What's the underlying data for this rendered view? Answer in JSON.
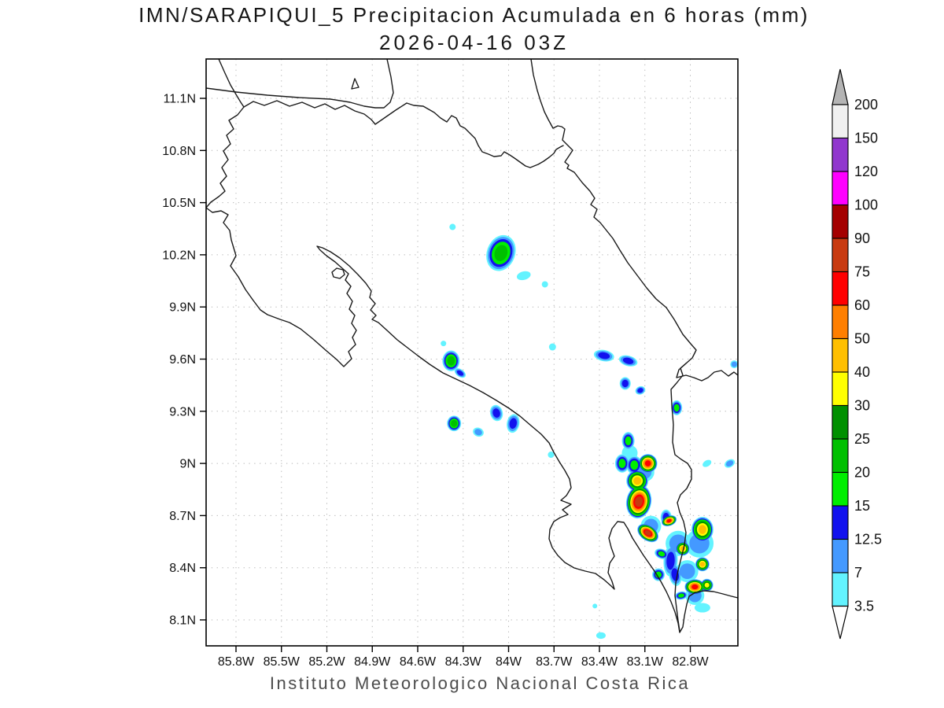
{
  "header": {
    "title": "IMN/SARAPIQUI_5 Precipitacion Acumulada en 6 horas (mm)",
    "subtitle": "2026-04-16 03Z"
  },
  "footer": {
    "caption": "Instituto Meteorologico Nacional Costa Rica"
  },
  "chart_data": {
    "type": "heatmap",
    "subtype": "filled-contour-precipitation-map",
    "title": "IMN/SARAPIQUI_5 Precipitacion Acumulada en 6 horas (mm)",
    "subtitle": "2026-04-16 03Z",
    "units": "mm",
    "region": "Costa Rica",
    "grid": "dotted",
    "lat_ticks": [
      "11.1N",
      "10.8N",
      "10.5N",
      "10.2N",
      "9.9N",
      "9.6N",
      "9.3N",
      "9N",
      "8.7N",
      "8.4N",
      "8.1N"
    ],
    "lon_ticks": [
      "85.8W",
      "85.5W",
      "85.2W",
      "84.9W",
      "84.6W",
      "84.3W",
      "84W",
      "83.7W",
      "83.4W",
      "83.1W",
      "82.8W"
    ],
    "xlim_lon_west": [
      86.0,
      82.49
    ],
    "ylim_lat_north": [
      7.95,
      11.33
    ],
    "colorbar": {
      "position": "right",
      "levels_top_to_bottom": [
        "200",
        "150",
        "120",
        "100",
        "90",
        "75",
        "60",
        "50",
        "40",
        "30",
        "25",
        "20",
        "15",
        "12.5",
        "7",
        "3.5"
      ],
      "segment_colors_top_to_bottom": [
        "#f0f0f0",
        "#9137ce",
        "#ff00ff",
        "#a40000",
        "#c83a10",
        "#ff0000",
        "#ff7f00",
        "#ffbf00",
        "#ffff00",
        "#009000",
        "#00c000",
        "#00ee00",
        "#1212ee",
        "#4499ff",
        "#63f3ff"
      ],
      "over_arrow_color": "#b4b4b4",
      "under_arrow_color": "#ffffff"
    },
    "precip_features": [
      {
        "lon": 84.37,
        "lat": 10.36,
        "mm": 5,
        "size": 4
      },
      {
        "lon": 84.05,
        "lat": 10.21,
        "mm": 21,
        "size": 18,
        "aspect": 1.3,
        "rot": 20
      },
      {
        "lon": 83.9,
        "lat": 10.08,
        "mm": 5,
        "size": 9,
        "aspect": 0.6,
        "rot": -15
      },
      {
        "lon": 83.76,
        "lat": 10.03,
        "mm": 5,
        "size": 4
      },
      {
        "lon": 83.71,
        "lat": 9.67,
        "mm": 5,
        "size": 4.5
      },
      {
        "lon": 84.38,
        "lat": 9.59,
        "mm": 21,
        "size": 11,
        "aspect": 1.2
      },
      {
        "lon": 84.43,
        "lat": 9.69,
        "mm": 5,
        "size": 3.5
      },
      {
        "lon": 84.32,
        "lat": 9.52,
        "mm": 13,
        "size": 8,
        "aspect": 0.6,
        "rot": 35
      },
      {
        "lon": 83.37,
        "lat": 9.62,
        "mm": 13,
        "size": 13,
        "aspect": 0.55,
        "rot": 10
      },
      {
        "lon": 83.21,
        "lat": 9.59,
        "mm": 13,
        "size": 12,
        "aspect": 0.55,
        "rot": 15
      },
      {
        "lon": 83.23,
        "lat": 9.46,
        "mm": 13,
        "size": 7,
        "aspect": 1.15
      },
      {
        "lon": 83.13,
        "lat": 9.42,
        "mm": 13,
        "size": 6.5,
        "aspect": 0.8,
        "rot": -20
      },
      {
        "lon": 82.89,
        "lat": 9.32,
        "mm": 17,
        "size": 7,
        "aspect": 1.35
      },
      {
        "lon": 84.36,
        "lat": 9.23,
        "mm": 21,
        "size": 9,
        "aspect": 1.1
      },
      {
        "lon": 84.2,
        "lat": 9.18,
        "mm": 8,
        "size": 7,
        "aspect": 0.8,
        "rot": 20
      },
      {
        "lon": 84.08,
        "lat": 9.29,
        "mm": 13,
        "size": 8,
        "aspect": 1.3,
        "rot": -15
      },
      {
        "lon": 83.97,
        "lat": 9.23,
        "mm": 13,
        "size": 8,
        "aspect": 1.5,
        "rot": 10
      },
      {
        "lon": 83.72,
        "lat": 9.05,
        "mm": 5,
        "size": 4
      },
      {
        "lon": 82.69,
        "lat": 9.0,
        "mm": 5,
        "size": 6,
        "aspect": 0.65,
        "rot": -30
      },
      {
        "lon": 82.54,
        "lat": 9.0,
        "mm": 8,
        "size": 7,
        "aspect": 0.7,
        "rot": -30
      },
      {
        "lon": 82.51,
        "lat": 9.57,
        "mm": 8,
        "size": 5
      },
      {
        "lon": 83.39,
        "lat": 8.01,
        "mm": 5,
        "size": 6,
        "aspect": 0.7
      },
      {
        "lon": 83.43,
        "lat": 8.18,
        "mm": 5,
        "size": 3
      },
      {
        "lon": 83.21,
        "lat": 9.13,
        "mm": 17,
        "size": 8,
        "aspect": 1.4
      },
      {
        "lon": 83.25,
        "lat": 9.0,
        "mm": 17,
        "size": 9,
        "aspect": 1.3
      },
      {
        "lon": 83.17,
        "lat": 8.99,
        "mm": 17,
        "size": 10,
        "aspect": 1.2
      },
      {
        "lon": 83.08,
        "lat": 9.0,
        "mm": 62,
        "size": 12
      },
      {
        "lon": 83.15,
        "lat": 8.9,
        "mm": 45,
        "size": 14
      },
      {
        "lon": 83.14,
        "lat": 8.78,
        "mm": 80,
        "size": 16,
        "aspect": 1.35,
        "rot": 10
      },
      {
        "lon": 82.94,
        "lat": 8.67,
        "mm": 62,
        "size": 10,
        "aspect": 0.65,
        "rot": -20
      },
      {
        "lon": 83.08,
        "lat": 8.6,
        "mm": 80,
        "size": 15,
        "aspect": 0.65,
        "rot": 35
      },
      {
        "lon": 82.85,
        "lat": 8.51,
        "mm": 45,
        "size": 9
      },
      {
        "lon": 82.72,
        "lat": 8.62,
        "mm": 45,
        "size": 14,
        "aspect": 1.15
      },
      {
        "lon": 82.72,
        "lat": 8.42,
        "mm": 45,
        "size": 9
      },
      {
        "lon": 82.99,
        "lat": 8.48,
        "mm": 17,
        "size": 9,
        "aspect": 0.7,
        "rot": 20
      },
      {
        "lon": 83.01,
        "lat": 8.36,
        "mm": 17,
        "size": 8
      },
      {
        "lon": 82.77,
        "lat": 8.29,
        "mm": 62,
        "size": 13,
        "aspect": 0.75
      },
      {
        "lon": 82.69,
        "lat": 8.3,
        "mm": 33,
        "size": 8
      },
      {
        "lon": 82.86,
        "lat": 8.24,
        "mm": 17,
        "size": 8,
        "aspect": 0.65,
        "rot": -10
      },
      {
        "lon": 82.93,
        "lat": 8.44,
        "mm": 13,
        "size": 9,
        "aspect": 2.2,
        "rot": 3
      },
      {
        "lon": 82.9,
        "lat": 8.36,
        "mm": 13,
        "size": 8,
        "aspect": 1.8,
        "rot": -10
      },
      {
        "lon": 82.96,
        "lat": 8.69,
        "mm": 13,
        "size": 7,
        "aspect": 1.4
      },
      {
        "lon": 82.88,
        "lat": 8.54,
        "mm": 8,
        "size": 16
      },
      {
        "lon": 82.82,
        "lat": 8.38,
        "mm": 8,
        "size": 14
      },
      {
        "lon": 82.74,
        "lat": 8.54,
        "mm": 8,
        "size": 18
      },
      {
        "lon": 82.77,
        "lat": 8.24,
        "mm": 8,
        "size": 12
      },
      {
        "lon": 83.06,
        "lat": 8.64,
        "mm": 8,
        "size": 13
      },
      {
        "lon": 83.1,
        "lat": 8.95,
        "mm": 8,
        "size": 12
      },
      {
        "lon": 83.2,
        "lat": 9.06,
        "mm": 5,
        "size": 10
      },
      {
        "lon": 82.72,
        "lat": 8.17,
        "mm": 5,
        "size": 10,
        "aspect": 0.6
      }
    ]
  }
}
